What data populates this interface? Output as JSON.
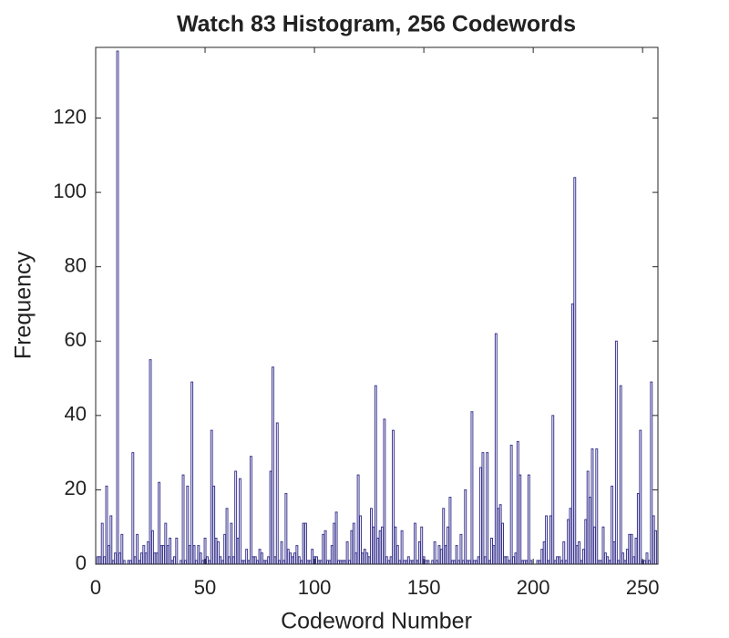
{
  "chart_data": {
    "type": "bar",
    "title": "Watch 83 Histogram, 256 Codewords",
    "xlabel": "Codeword Number",
    "ylabel": "Frequency",
    "color": "#3b3690",
    "xlim": [
      0,
      257
    ],
    "xticks": [
      0,
      50,
      100,
      150,
      200,
      250
    ],
    "ylim": [
      0,
      139
    ],
    "yticks": [
      0,
      20,
      40,
      60,
      80,
      100,
      120
    ],
    "x": [
      1,
      2,
      3,
      4,
      5,
      6,
      7,
      8,
      9,
      10,
      11,
      12,
      13,
      14,
      15,
      16,
      17,
      18,
      19,
      20,
      21,
      22,
      23,
      24,
      25,
      26,
      27,
      28,
      29,
      30,
      31,
      32,
      33,
      34,
      35,
      36,
      37,
      38,
      39,
      40,
      41,
      42,
      43,
      44,
      45,
      46,
      47,
      48,
      49,
      50,
      51,
      52,
      53,
      54,
      55,
      56,
      57,
      58,
      59,
      60,
      61,
      62,
      63,
      64,
      65,
      66,
      67,
      68,
      69,
      70,
      71,
      72,
      73,
      74,
      75,
      76,
      77,
      78,
      79,
      80,
      81,
      82,
      83,
      84,
      85,
      86,
      87,
      88,
      89,
      90,
      91,
      92,
      93,
      94,
      95,
      96,
      97,
      98,
      99,
      100,
      101,
      102,
      103,
      104,
      105,
      106,
      107,
      108,
      109,
      110,
      111,
      112,
      113,
      114,
      115,
      116,
      117,
      118,
      119,
      120,
      121,
      122,
      123,
      124,
      125,
      126,
      127,
      128,
      129,
      130,
      131,
      132,
      133,
      134,
      135,
      136,
      137,
      138,
      139,
      140,
      141,
      142,
      143,
      144,
      145,
      146,
      147,
      148,
      149,
      150,
      151,
      152,
      153,
      154,
      155,
      156,
      157,
      158,
      159,
      160,
      161,
      162,
      163,
      164,
      165,
      166,
      167,
      168,
      169,
      170,
      171,
      172,
      173,
      174,
      175,
      176,
      177,
      178,
      179,
      180,
      181,
      182,
      183,
      184,
      185,
      186,
      187,
      188,
      189,
      190,
      191,
      192,
      193,
      194,
      195,
      196,
      197,
      198,
      199,
      200,
      201,
      202,
      203,
      204,
      205,
      206,
      207,
      208,
      209,
      210,
      211,
      212,
      213,
      214,
      215,
      216,
      217,
      218,
      219,
      220,
      221,
      222,
      223,
      224,
      225,
      226,
      227,
      228,
      229,
      230,
      231,
      232,
      233,
      234,
      235,
      236,
      237,
      238,
      239,
      240,
      241,
      242,
      243,
      244,
      245,
      246,
      247,
      248,
      249,
      250,
      251,
      252,
      253,
      254,
      255,
      256
    ],
    "values": [
      2,
      2,
      11,
      2,
      21,
      5,
      13,
      1,
      3,
      138,
      3,
      8,
      1,
      0,
      1,
      1,
      30,
      2,
      8,
      1,
      3,
      5,
      3,
      6,
      55,
      9,
      3,
      3,
      22,
      5,
      5,
      11,
      5,
      7,
      1,
      2,
      7,
      0,
      1,
      24,
      1,
      21,
      5,
      49,
      5,
      1,
      5,
      3,
      1,
      7,
      2,
      1,
      36,
      21,
      7,
      6,
      2,
      1,
      8,
      15,
      2,
      11,
      2,
      25,
      7,
      23,
      1,
      1,
      4,
      1,
      29,
      2,
      2,
      1,
      4,
      3,
      1,
      1,
      2,
      25,
      53,
      2,
      38,
      1,
      6,
      1,
      19,
      4,
      3,
      2,
      3,
      5,
      2,
      1,
      11,
      11,
      1,
      1,
      4,
      2,
      2,
      1,
      1,
      8,
      9,
      1,
      1,
      5,
      11,
      14,
      1,
      1,
      1,
      1,
      6,
      1,
      9,
      11,
      3,
      24,
      13,
      3,
      4,
      3,
      2,
      15,
      10,
      48,
      7,
      9,
      10,
      39,
      2,
      1,
      2,
      36,
      10,
      5,
      1,
      9,
      1,
      1,
      2,
      1,
      1,
      11,
      1,
      6,
      10,
      2,
      1,
      1,
      0,
      1,
      6,
      1,
      5,
      4,
      15,
      5,
      10,
      18,
      1,
      1,
      5,
      1,
      8,
      1,
      20,
      1,
      1,
      41,
      1,
      1,
      2,
      26,
      30,
      2,
      30,
      1,
      7,
      5,
      62,
      15,
      16,
      11,
      2,
      2,
      1,
      32,
      2,
      3,
      33,
      24,
      1,
      1,
      1,
      24,
      1,
      0,
      0,
      1,
      1,
      4,
      6,
      13,
      1,
      13,
      40,
      1,
      2,
      2,
      1,
      6,
      1,
      12,
      15,
      70,
      104,
      5,
      6,
      1,
      4,
      12,
      25,
      18,
      31,
      10,
      31,
      1,
      1,
      10,
      3,
      2,
      1,
      21,
      6,
      60,
      1,
      48,
      3,
      1,
      4,
      8,
      8,
      2,
      7,
      19,
      36,
      1,
      1,
      3,
      1,
      49,
      13,
      9
    ]
  }
}
